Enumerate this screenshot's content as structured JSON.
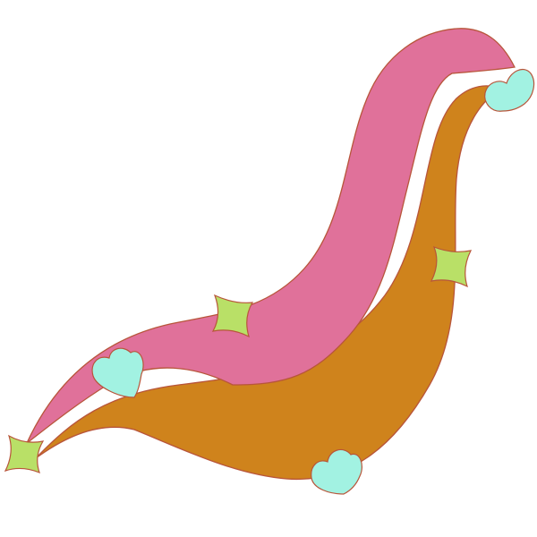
{
  "background_color": "#ffffff",
  "colors": {
    "pink_band": "#E0719A",
    "orange_band": "#CF831C",
    "outline": "#B8553A",
    "heart_fill": "#A2F2E2",
    "star_fill": "#B9E067"
  },
  "shapes": {
    "bands": [
      "pink-band",
      "orange-band"
    ],
    "hearts": [
      "heart-top-right",
      "heart-left",
      "heart-bottom"
    ],
    "sparkles": [
      "sparkle-middle",
      "sparkle-right",
      "sparkle-bottom-left"
    ]
  }
}
